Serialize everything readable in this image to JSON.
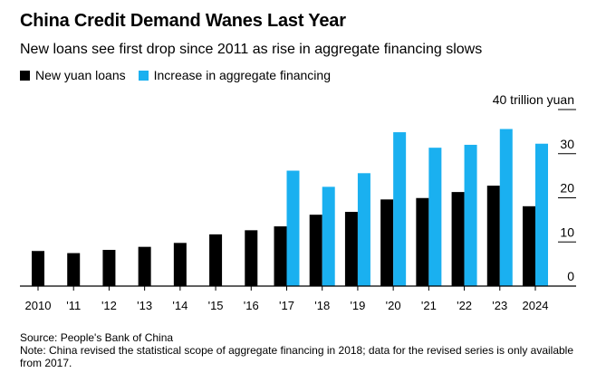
{
  "title": "China Credit Demand Wanes Last Year",
  "subtitle": "New loans see first drop since 2011 as rise in aggregate financing slows",
  "colors": {
    "new_loans": "#000000",
    "aggregate": "#1ab0f0",
    "axis": "#000000",
    "grid": "#000000"
  },
  "source": "Source: People's Bank of China",
  "note": "Note: China revised the statistical scope of aggregate financing in 2018; data for the revised series is only available from 2017.",
  "chart_data": {
    "type": "bar",
    "categories": [
      "2010",
      "'11",
      "'12",
      "'13",
      "'14",
      "'15",
      "'16",
      "'17",
      "'18",
      "'19",
      "'20",
      "'21",
      "'22",
      "'23",
      "2024"
    ],
    "series": [
      {
        "name": "New yuan loans",
        "values": [
          7.95,
          7.47,
          8.2,
          8.89,
          9.78,
          11.72,
          12.65,
          13.53,
          16.17,
          16.81,
          19.63,
          19.95,
          21.31,
          22.75,
          18.09
        ]
      },
      {
        "name": "Increase in aggregate financing",
        "values": [
          null,
          null,
          null,
          null,
          null,
          null,
          null,
          26.15,
          22.49,
          25.58,
          34.86,
          31.35,
          32.01,
          35.59,
          32.26
        ]
      }
    ],
    "yticks": [
      "0",
      "10",
      "20",
      "30",
      "40 trillion yuan"
    ],
    "ylim": [
      0,
      40
    ],
    "grid": true
  }
}
